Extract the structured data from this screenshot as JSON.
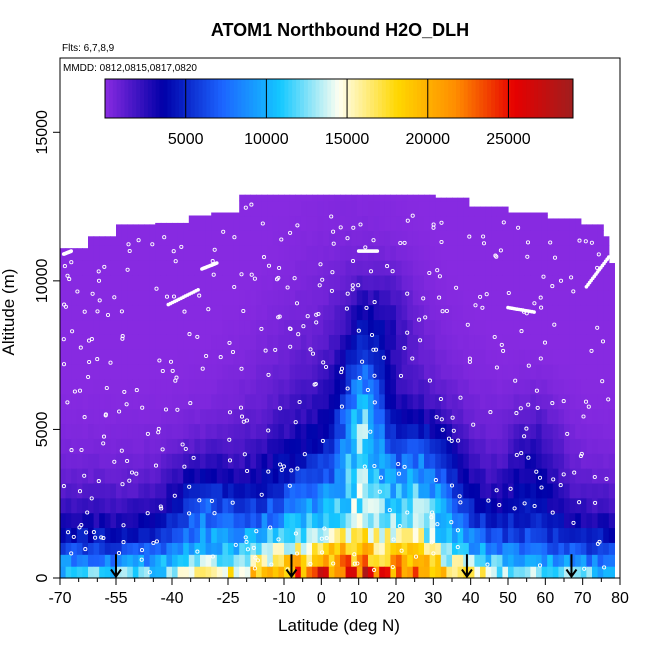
{
  "chart_data": {
    "type": "heatmap",
    "title": "ATOM1 Northbound H2O_DLH",
    "flights_note": "Flts: 6,7,8,9",
    "dates_note": "MMDD: 0812,0815,0817,0820",
    "xlabel": "Latitude (deg N)",
    "ylabel": "Altitude (m)",
    "xlim": [
      -70,
      80
    ],
    "ylim": [
      0,
      17500
    ],
    "x_ticks": [
      -70,
      -55,
      -40,
      -25,
      -10,
      0,
      10,
      20,
      30,
      40,
      50,
      60,
      70,
      80
    ],
    "x_tick_labels": [
      "-70",
      "-55",
      "-40",
      "-25",
      "-10",
      "0",
      "10",
      "20",
      "30",
      "40",
      "50",
      "60",
      "70",
      "80"
    ],
    "y_ticks": [
      0,
      5000,
      10000,
      15000
    ],
    "y_tick_labels": [
      "0",
      "5000",
      "10000",
      "15000"
    ],
    "colorbar": {
      "range": [
        0,
        29000
      ],
      "ticks": [
        5000,
        10000,
        15000,
        20000,
        25000
      ],
      "tick_labels": [
        "5000",
        "10000",
        "15000",
        "20000",
        "25000"
      ],
      "colors": [
        "#8a2be2",
        "#0000a8",
        "#1c64ff",
        "#14c8ff",
        "#fffff0",
        "#ffd700",
        "#ff8c00",
        "#e60000",
        "#a01e1e"
      ]
    },
    "coverage_top_altitude": [
      {
        "lat": -70,
        "alt": 11100
      },
      {
        "lat": -62,
        "alt": 11500
      },
      {
        "lat": -55,
        "alt": 11900
      },
      {
        "lat": -45,
        "alt": 11950
      },
      {
        "lat": -35,
        "alt": 12200
      },
      {
        "lat": -30,
        "alt": 12300
      },
      {
        "lat": -22,
        "alt": 12900
      },
      {
        "lat": -10,
        "alt": 12900
      },
      {
        "lat": 5,
        "alt": 12900
      },
      {
        "lat": 20,
        "alt": 12900
      },
      {
        "lat": 30,
        "alt": 12800
      },
      {
        "lat": 40,
        "alt": 12500
      },
      {
        "lat": 50,
        "alt": 12300
      },
      {
        "lat": 60,
        "alt": 12100
      },
      {
        "lat": 70,
        "alt": 11900
      },
      {
        "lat": 75,
        "alt": 11500
      },
      {
        "lat": 77,
        "alt": 10600
      },
      {
        "lat": 78,
        "alt": 8000
      }
    ],
    "h2o_field_samples": [
      {
        "lat": -58,
        "alt_max": 400,
        "value": 16000
      },
      {
        "lat": -40,
        "alt_max": 400,
        "value": 19000
      },
      {
        "lat": -25,
        "alt_max": 400,
        "value": 21000
      },
      {
        "lat": -10,
        "alt_max": 400,
        "value": 22000
      },
      {
        "lat": 5,
        "alt_max": 400,
        "value": 24000
      },
      {
        "lat": 10,
        "alt_max": 400,
        "value": 27000
      },
      {
        "lat": 20,
        "alt_max": 400,
        "value": 24000
      },
      {
        "lat": 35,
        "alt_max": 400,
        "value": 22000
      },
      {
        "lat": 50,
        "alt_max": 400,
        "value": 19000
      },
      {
        "lat": 65,
        "alt_max": 400,
        "value": 15000
      },
      {
        "lat": 10,
        "alt_max": 3000,
        "value": 14000
      },
      {
        "lat": 12,
        "alt_max": 6500,
        "value": 9000
      },
      {
        "lat": -35,
        "alt_max": 8000,
        "value": 2000
      },
      {
        "lat": 60,
        "alt_max": 10000,
        "value": 1000
      }
    ],
    "sounding_latitudes": [
      -55,
      -8,
      39,
      67
    ],
    "grid": false
  }
}
